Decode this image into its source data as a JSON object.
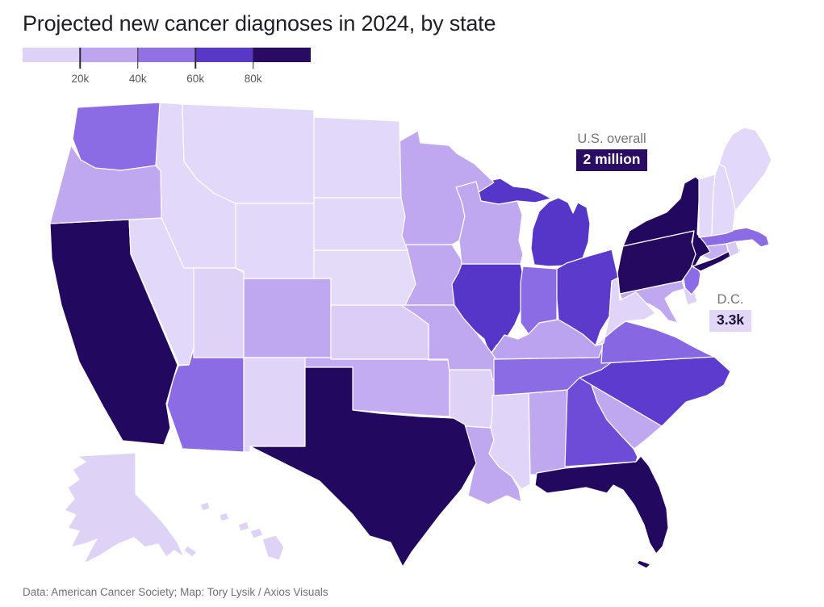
{
  "header": {
    "title": "Projected new cancer diagnoses in 2024, by state"
  },
  "legend": {
    "bins": [
      {
        "range": "<20k",
        "color": "#ddd1f7"
      },
      {
        "range": "20k-40k",
        "color": "#bda5f0"
      },
      {
        "range": "40k-60k",
        "color": "#9171e5"
      },
      {
        "range": "60k-80k",
        "color": "#5838c9"
      },
      {
        "range": "80k+",
        "color": "#2a0b64"
      }
    ],
    "ticks": [
      "20k",
      "40k",
      "60k",
      "80k"
    ]
  },
  "annotations": {
    "us_overall": {
      "label": "U.S. overall",
      "value": "2 million",
      "badge_bg": "#2a0d63",
      "badge_text_color": "#ffffff"
    },
    "dc": {
      "label": "D.C.",
      "value": "3.3k",
      "badge_bg": "#e2d7f8",
      "badge_text_color": "#1b1430"
    }
  },
  "footer": {
    "credit": "Data: American Cancer Society; Map: Tory Lysik / Axios Visuals"
  },
  "colors": {
    "state_border": "#ffffff",
    "title_text": "#1e1e28",
    "muted_text": "#74747c",
    "tick_text": "#55555e"
  },
  "chart_data": {
    "type": "choropleth",
    "title": "Projected new cancer diagnoses in 2024, by state",
    "unit": "projected new cancer diagnoses in 2024",
    "legend_breaks": [
      "20k",
      "40k",
      "60k",
      "80k"
    ],
    "legend_colors": [
      "#ddd1f7",
      "#bda5f0",
      "#9171e5",
      "#5838c9",
      "#2a0b64"
    ],
    "us_overall": "2 million",
    "dc_value": "3.3k",
    "states": [
      {
        "id": "AK",
        "name": "Alaska",
        "bin": "<20k",
        "fill": "#ded2f7"
      },
      {
        "id": "AL",
        "name": "Alabama",
        "bin": "20k-40k",
        "fill": "#c0a8f0"
      },
      {
        "id": "AR",
        "name": "Arkansas",
        "bin": "<20k",
        "fill": "#ded2f7"
      },
      {
        "id": "AZ",
        "name": "Arizona",
        "bin": "40k-60k",
        "fill": "#8b6ce4"
      },
      {
        "id": "CA",
        "name": "California",
        "bin": "80k+",
        "fill": "#22085e"
      },
      {
        "id": "CO",
        "name": "Colorado",
        "bin": "20k-40k",
        "fill": "#c0a8f0"
      },
      {
        "id": "CT",
        "name": "Connecticut",
        "bin": "20k-40k",
        "fill": "#c6b0f2"
      },
      {
        "id": "DC",
        "name": "District of Columbia",
        "bin": "<20k",
        "fill": "#ded2f7",
        "value": "3.3k"
      },
      {
        "id": "DE",
        "name": "Delaware",
        "bin": "<20k",
        "fill": "#ded2f7"
      },
      {
        "id": "FL",
        "name": "Florida",
        "bin": "80k+",
        "fill": "#22085e"
      },
      {
        "id": "GA",
        "name": "Georgia",
        "bin": "60k-80k",
        "fill": "#6f4cd8"
      },
      {
        "id": "HI",
        "name": "Hawaii",
        "bin": "<20k",
        "fill": "#ded2f7"
      },
      {
        "id": "IA",
        "name": "Iowa",
        "bin": "20k-40k",
        "fill": "#c0a8f0"
      },
      {
        "id": "ID",
        "name": "Idaho",
        "bin": "<20k",
        "fill": "#e2d8f9"
      },
      {
        "id": "IL",
        "name": "Illinois",
        "bin": "60k-80k",
        "fill": "#5636c8"
      },
      {
        "id": "IN",
        "name": "Indiana",
        "bin": "40k-60k",
        "fill": "#8b6ce4"
      },
      {
        "id": "KS",
        "name": "Kansas",
        "bin": "<20k",
        "fill": "#dbcdf6"
      },
      {
        "id": "KY",
        "name": "Kentucky",
        "bin": "20k-40k",
        "fill": "#bca3f0"
      },
      {
        "id": "LA",
        "name": "Louisiana",
        "bin": "20k-40k",
        "fill": "#c0a8f0"
      },
      {
        "id": "MA",
        "name": "Massachusetts",
        "bin": "40k-60k",
        "fill": "#8b6ce4"
      },
      {
        "id": "MD",
        "name": "Maryland",
        "bin": "20k-40k",
        "fill": "#c0a8f0"
      },
      {
        "id": "ME",
        "name": "Maine",
        "bin": "<20k",
        "fill": "#e2d8f9"
      },
      {
        "id": "MI",
        "name": "Michigan",
        "bin": "60k-80k",
        "fill": "#5636c8"
      },
      {
        "id": "MN",
        "name": "Minnesota",
        "bin": "20k-40k",
        "fill": "#c0a8f0"
      },
      {
        "id": "MO",
        "name": "Missouri",
        "bin": "20k-40k",
        "fill": "#c0a8f0"
      },
      {
        "id": "MS",
        "name": "Mississippi",
        "bin": "<20k",
        "fill": "#e0d5f8"
      },
      {
        "id": "MT",
        "name": "Montana",
        "bin": "<20k",
        "fill": "#e2d8f9"
      },
      {
        "id": "NC",
        "name": "North Carolina",
        "bin": "60k-80k",
        "fill": "#5d3bce"
      },
      {
        "id": "ND",
        "name": "North Dakota",
        "bin": "<20k",
        "fill": "#e2d8f9"
      },
      {
        "id": "NE",
        "name": "Nebraska",
        "bin": "<20k",
        "fill": "#e4dbf9"
      },
      {
        "id": "NH",
        "name": "New Hampshire",
        "bin": "<20k",
        "fill": "#e2d8f9"
      },
      {
        "id": "NJ",
        "name": "New Jersey",
        "bin": "40k-60k",
        "fill": "#8b6ce4"
      },
      {
        "id": "NM",
        "name": "New Mexico",
        "bin": "<20k",
        "fill": "#e0d5f8"
      },
      {
        "id": "NV",
        "name": "Nevada",
        "bin": "<20k",
        "fill": "#e2d8f9"
      },
      {
        "id": "NY",
        "name": "New York",
        "bin": "80k+",
        "fill": "#22085e"
      },
      {
        "id": "OH",
        "name": "Ohio",
        "bin": "60k-80k",
        "fill": "#5c3acb"
      },
      {
        "id": "OK",
        "name": "Oklahoma",
        "bin": "20k-40k",
        "fill": "#c3acf1"
      },
      {
        "id": "OR",
        "name": "Oregon",
        "bin": "20k-40k",
        "fill": "#c0a8f0"
      },
      {
        "id": "PA",
        "name": "Pennsylvania",
        "bin": "80k+",
        "fill": "#24095f"
      },
      {
        "id": "RI",
        "name": "Rhode Island",
        "bin": "<20k",
        "fill": "#d8c9f5"
      },
      {
        "id": "SC",
        "name": "South Carolina",
        "bin": "20k-40k",
        "fill": "#c0a8f0"
      },
      {
        "id": "SD",
        "name": "South Dakota",
        "bin": "<20k",
        "fill": "#e2d8f9"
      },
      {
        "id": "TN",
        "name": "Tennessee",
        "bin": "40k-60k",
        "fill": "#8b6ce4"
      },
      {
        "id": "TX",
        "name": "Texas",
        "bin": "80k+",
        "fill": "#22085e"
      },
      {
        "id": "UT",
        "name": "Utah",
        "bin": "<20k",
        "fill": "#ded2f7"
      },
      {
        "id": "VA",
        "name": "Virginia",
        "bin": "40k-60k",
        "fill": "#8767e2"
      },
      {
        "id": "VT",
        "name": "Vermont",
        "bin": "<20k",
        "fill": "#e2d8f9"
      },
      {
        "id": "WA",
        "name": "Washington",
        "bin": "40k-60k",
        "fill": "#8b6ce4"
      },
      {
        "id": "WI",
        "name": "Wisconsin",
        "bin": "20k-40k",
        "fill": "#c0a8f0"
      },
      {
        "id": "WV",
        "name": "West Virginia",
        "bin": "<20k",
        "fill": "#e0d5f8"
      },
      {
        "id": "WY",
        "name": "Wyoming",
        "bin": "<20k",
        "fill": "#e2d8f9"
      }
    ]
  }
}
